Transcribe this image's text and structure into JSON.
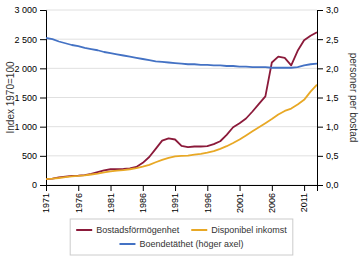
{
  "chart_data": {
    "type": "line",
    "ylabel": "Index 1970=100",
    "y2label": "personer per bostad",
    "x": [
      1971,
      1972,
      1973,
      1974,
      1975,
      1976,
      1977,
      1978,
      1979,
      1980,
      1981,
      1982,
      1983,
      1984,
      1985,
      1986,
      1987,
      1988,
      1989,
      1990,
      1991,
      1992,
      1993,
      1994,
      1995,
      1996,
      1997,
      1998,
      1999,
      2000,
      2001,
      2002,
      2003,
      2004,
      2005,
      2006,
      2007,
      2008,
      2009,
      2010,
      2011,
      2012,
      2013
    ],
    "series": [
      {
        "name": "Bostadsförmögenhet",
        "color": "#8B1A3A",
        "values": [
          100,
          110,
          130,
          145,
          155,
          160,
          170,
          190,
          220,
          250,
          270,
          270,
          275,
          285,
          310,
          380,
          480,
          620,
          760,
          800,
          780,
          670,
          650,
          660,
          660,
          665,
          700,
          750,
          860,
          990,
          1060,
          1140,
          1260,
          1390,
          1520,
          2100,
          2200,
          2180,
          2050,
          2300,
          2480,
          2560,
          2620
        ]
      },
      {
        "name": "Disponibel inkomst",
        "color": "#E8A825",
        "values": [
          100,
          108,
          120,
          135,
          148,
          155,
          165,
          180,
          195,
          215,
          235,
          248,
          255,
          270,
          290,
          315,
          345,
          390,
          430,
          465,
          490,
          500,
          505,
          520,
          535,
          555,
          580,
          620,
          665,
          720,
          780,
          850,
          920,
          990,
          1060,
          1130,
          1210,
          1270,
          1310,
          1380,
          1460,
          1600,
          1720
        ]
      },
      {
        "name": "Boendetäthet (höger axel)",
        "color": "#4472C4",
        "axis": "y2",
        "values": [
          2.52,
          2.5,
          2.46,
          2.43,
          2.4,
          2.38,
          2.35,
          2.33,
          2.31,
          2.28,
          2.26,
          2.24,
          2.22,
          2.2,
          2.18,
          2.16,
          2.14,
          2.12,
          2.11,
          2.1,
          2.09,
          2.08,
          2.07,
          2.07,
          2.06,
          2.06,
          2.05,
          2.05,
          2.04,
          2.04,
          2.03,
          2.03,
          2.02,
          2.02,
          2.02,
          2.01,
          2.01,
          2.01,
          2.01,
          2.02,
          2.05,
          2.07,
          2.08
        ]
      }
    ],
    "xlim": [
      1971,
      2013
    ],
    "xticks": [
      1971,
      1976,
      1981,
      1986,
      1991,
      1996,
      2001,
      2006,
      2011
    ],
    "ylim": [
      0,
      3000
    ],
    "yticks": [
      0,
      500,
      {
        "value": 1000,
        "label": "1 000"
      },
      {
        "value": 1500,
        "label": "1 500"
      },
      {
        "value": 2000,
        "label": "2 000"
      },
      {
        "value": 2500,
        "label": "2 500"
      },
      {
        "value": 3000,
        "label": "3 000"
      }
    ],
    "y2lim": [
      0.0,
      3.0
    ],
    "y2ticks": [
      {
        "value": 0.0,
        "label": "0,0"
      },
      {
        "value": 0.5,
        "label": "0,5"
      },
      {
        "value": 1.0,
        "label": "1,0"
      },
      {
        "value": 1.5,
        "label": "1,5"
      },
      {
        "value": 2.0,
        "label": "2,0"
      },
      {
        "value": 2.5,
        "label": "2,5"
      },
      {
        "value": 3.0,
        "label": "3,0"
      }
    ],
    "grid": true,
    "legend": "bottom"
  }
}
